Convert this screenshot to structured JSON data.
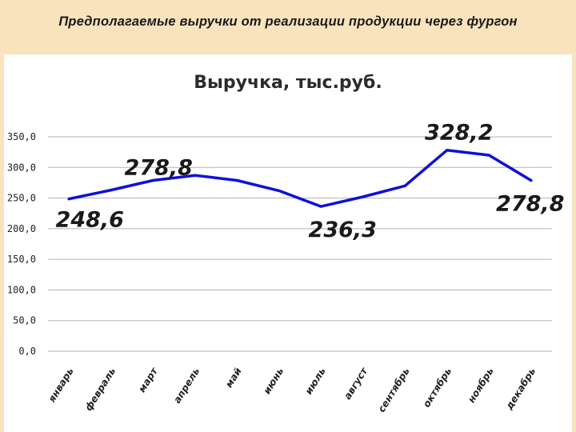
{
  "slide": {
    "title": "Предполагаемые выручки от реализации продукции через фургон"
  },
  "chart_data": {
    "type": "line",
    "title": "Выручка, тыс.руб.",
    "xlabel": "",
    "ylabel": "",
    "ylim": [
      0,
      350
    ],
    "y_ticks": [
      "0,0",
      "50,0",
      "100,0",
      "150,0",
      "200,0",
      "250,0",
      "300,0",
      "350,0"
    ],
    "grid": true,
    "categories": [
      "январь",
      "февраль",
      "март",
      "апрель",
      "май",
      "июнь",
      "июль",
      "август",
      "сентябрь",
      "октябрь",
      "ноябрь",
      "декабрь"
    ],
    "series": [
      {
        "color": "#1010d8",
        "values": [
          248.6,
          263.0,
          278.8,
          287.0,
          278.8,
          262.0,
          236.3,
          252.0,
          270.0,
          328.2,
          320.0,
          278.8
        ]
      }
    ],
    "data_labels": [
      {
        "index": 0,
        "text": "248,6"
      },
      {
        "index": 2,
        "text": "278,8"
      },
      {
        "index": 6,
        "text": "236,3"
      },
      {
        "index": 9,
        "text": "328,2"
      },
      {
        "index": 11,
        "text": "278,8"
      }
    ]
  }
}
